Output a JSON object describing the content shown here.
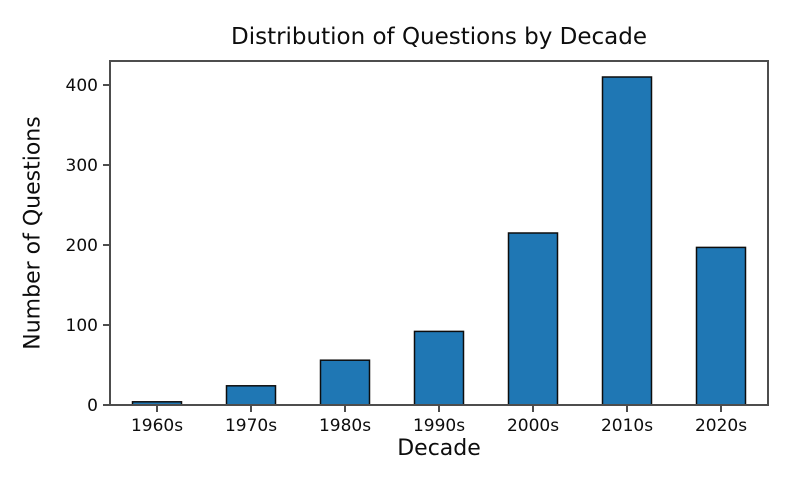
{
  "chart_data": {
    "type": "bar",
    "title": "Distribution of Questions by Decade",
    "xlabel": "Decade",
    "ylabel": "Number of Questions",
    "categories": [
      "1960s",
      "1970s",
      "1980s",
      "1990s",
      "2000s",
      "2010s",
      "2020s"
    ],
    "values": [
      4,
      24,
      56,
      92,
      215,
      410,
      197
    ],
    "yticks": [
      0,
      100,
      200,
      300,
      400
    ],
    "ylim": [
      0,
      430
    ],
    "grid": false,
    "legend": null,
    "bar_color": "#1f77b4",
    "bar_edge_color": "#0d0d0d",
    "spine_color": "#4d4d4d",
    "background_color": "#ffffff"
  }
}
